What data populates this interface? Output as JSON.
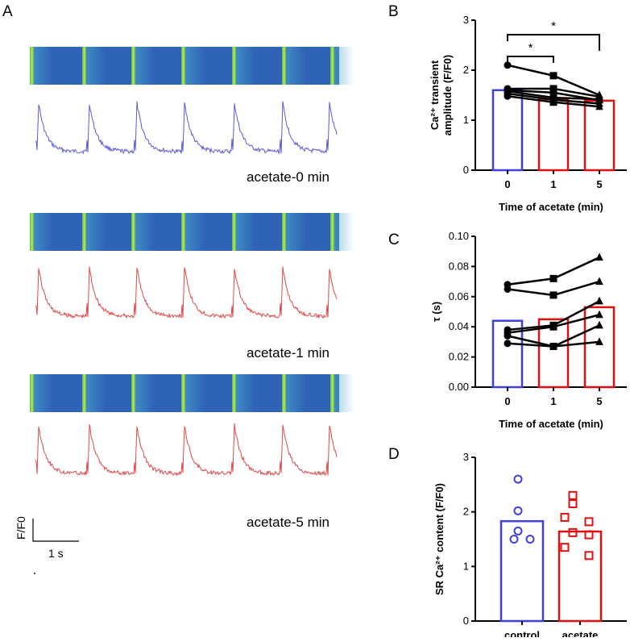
{
  "panel_labels": {
    "A": "A",
    "B": "B",
    "C": "C",
    "D": "D"
  },
  "panel_A": {
    "traces": [
      {
        "caption": "acetate-0 min",
        "color": "#5a5ad8"
      },
      {
        "caption": "acetate-1 min",
        "color": "#e04848"
      },
      {
        "caption": "acetate-5 min",
        "color": "#e04848"
      }
    ],
    "scale_bar": {
      "y_label": "F/F0",
      "x_label": "1 s"
    },
    "linescan_colors": {
      "base": "#2e63b6",
      "edge_yellow": "#d8e040",
      "edge_green": "#3cc070"
    }
  },
  "chart_data": [
    {
      "id": "B",
      "type": "bar",
      "categories": [
        "0",
        "1",
        "5"
      ],
      "bar_values": [
        1.6,
        1.42,
        1.39
      ],
      "bar_colors": [
        "#4040e0",
        "#e01010",
        "#e01010"
      ],
      "xlabel": "Time of acetate (min)",
      "ylabel_line1": "Ca²⁺ transient",
      "ylabel_line2": "amplitude (F/F0)",
      "ylim": [
        0,
        3
      ],
      "yticks": [
        0,
        1,
        2,
        3
      ],
      "paired_lines": [
        {
          "values": [
            2.1,
            1.89,
            1.5
          ],
          "markers": [
            "circle",
            "square",
            "triangle"
          ]
        },
        {
          "values": [
            1.63,
            1.63,
            1.47
          ],
          "markers": [
            "circle",
            "square",
            "triangle"
          ]
        },
        {
          "values": [
            1.6,
            1.55,
            1.4
          ],
          "markers": [
            "circle",
            "square",
            "triangle"
          ]
        },
        {
          "values": [
            1.58,
            1.45,
            1.42
          ],
          "markers": [
            "circle",
            "square",
            "triangle"
          ]
        },
        {
          "values": [
            1.53,
            1.41,
            1.33
          ],
          "markers": [
            "circle",
            "square",
            "triangle"
          ]
        },
        {
          "values": [
            1.48,
            1.36,
            1.27
          ],
          "markers": [
            "circle",
            "square",
            "triangle"
          ]
        }
      ],
      "significance": [
        {
          "from": "0",
          "to": "1",
          "label": "*"
        },
        {
          "from": "0",
          "to": "5",
          "label": "*"
        }
      ]
    },
    {
      "id": "C",
      "type": "bar",
      "categories": [
        "0",
        "1",
        "5"
      ],
      "bar_values": [
        0.044,
        0.045,
        0.053
      ],
      "bar_colors": [
        "#4040e0",
        "#e01010",
        "#e01010"
      ],
      "xlabel": "Time of acetate (min)",
      "ylabel": "τ (s)",
      "ylim": [
        0,
        0.1
      ],
      "yticks": [
        "0.00",
        "0.02",
        "0.04",
        "0.06",
        "0.08",
        "0.10"
      ],
      "paired_lines": [
        {
          "values": [
            0.068,
            0.072,
            0.086
          ],
          "markers": [
            "circle",
            "square",
            "triangle"
          ]
        },
        {
          "values": [
            0.065,
            0.061,
            0.07
          ],
          "markers": [
            "circle",
            "square",
            "triangle"
          ]
        },
        {
          "values": [
            0.038,
            0.041,
            0.057
          ],
          "markers": [
            "circle",
            "square",
            "triangle"
          ]
        },
        {
          "values": [
            0.036,
            0.04,
            0.048
          ],
          "markers": [
            "circle",
            "square",
            "triangle"
          ]
        },
        {
          "values": [
            0.034,
            0.027,
            0.041
          ],
          "markers": [
            "circle",
            "square",
            "triangle"
          ]
        },
        {
          "values": [
            0.029,
            0.027,
            0.03
          ],
          "markers": [
            "circle",
            "square",
            "triangle"
          ]
        }
      ]
    },
    {
      "id": "D",
      "type": "bar",
      "categories": [
        "control",
        "acetate"
      ],
      "bar_values": [
        1.83,
        1.64
      ],
      "bar_colors": [
        "#4040e0",
        "#e01010"
      ],
      "ylabel": "SR Ca²⁺ content (F/F0)",
      "ylim": [
        0,
        3
      ],
      "yticks": [
        0,
        1,
        2,
        3
      ],
      "points": [
        {
          "group": "control",
          "marker": "circle",
          "values": [
            2.6,
            2.02,
            1.65,
            1.5,
            1.5
          ]
        },
        {
          "group": "acetate",
          "marker": "square",
          "values": [
            2.3,
            2.15,
            1.9,
            1.82,
            1.62,
            1.58,
            1.35,
            1.2
          ]
        }
      ]
    }
  ]
}
